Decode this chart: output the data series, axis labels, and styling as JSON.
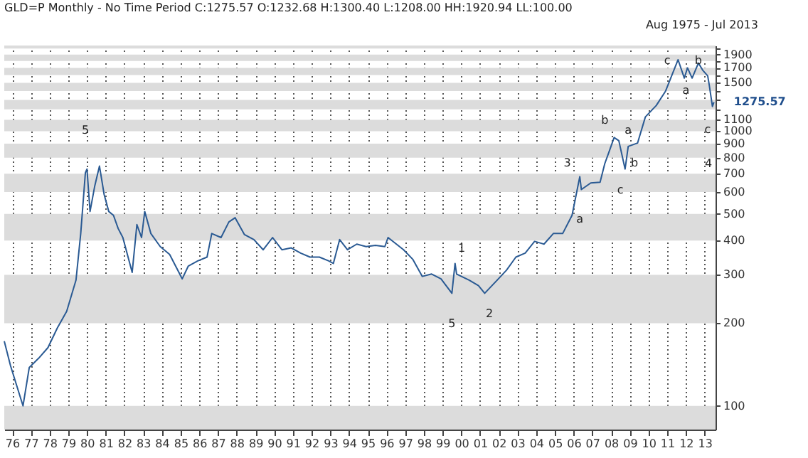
{
  "chart_data": {
    "type": "line",
    "title": "GLD=P Monthly -  No Time Period   C:1275.57 O:1232.68 H:1300.40 L:1208.00 HH:1920.94 LL:100.00",
    "x": [
      "1975-08",
      "1975-12",
      "1976-08",
      "1976-12",
      "1977-06",
      "1977-12",
      "1978-06",
      "1978-12",
      "1979-06",
      "1979-09",
      "1979-12",
      "1980-01",
      "1980-03",
      "1980-06",
      "1980-09",
      "1980-12",
      "1981-03",
      "1981-06",
      "1981-09",
      "1981-12",
      "1982-06",
      "1982-09",
      "1982-12",
      "1983-02",
      "1983-06",
      "1983-12",
      "1984-06",
      "1985-02",
      "1985-06",
      "1985-12",
      "1986-06",
      "1986-09",
      "1987-03",
      "1987-08",
      "1987-12",
      "1988-06",
      "1988-12",
      "1989-06",
      "1989-12",
      "1990-06",
      "1990-12",
      "1991-06",
      "1991-12",
      "1992-06",
      "1992-12",
      "1993-03",
      "1993-07",
      "1993-12",
      "1994-06",
      "1994-12",
      "1995-06",
      "1995-12",
      "1996-02",
      "1996-12",
      "1997-06",
      "1997-12",
      "1998-06",
      "1998-12",
      "1999-07",
      "1999-09",
      "1999-10",
      "2000-06",
      "2000-12",
      "2001-04",
      "2001-12",
      "2002-06",
      "2002-12",
      "2003-06",
      "2003-12",
      "2004-06",
      "2004-12",
      "2005-06",
      "2005-12",
      "2006-05",
      "2006-06",
      "2006-12",
      "2007-06",
      "2007-09",
      "2007-12",
      "2008-03",
      "2008-06",
      "2008-10",
      "2008-12",
      "2009-06",
      "2009-11",
      "2010-06",
      "2010-12",
      "2011-08",
      "2011-12",
      "2012-02",
      "2012-05",
      "2012-09",
      "2012-12",
      "2013-03",
      "2013-04",
      "2013-06",
      "2013-07"
    ],
    "series": [
      {
        "color": "#2a5a93",
        "line_style": "solid",
        "values": [
          172,
          140,
          100,
          138,
          149,
          163,
          192,
          221,
          287,
          424,
          706,
          728,
          510,
          632,
          746,
          588,
          510,
          494,
          442,
          410,
          306,
          457,
          410,
          510,
          424,
          380,
          356,
          290,
          323,
          337,
          348,
          424,
          410,
          467,
          484,
          420,
          403,
          370,
          410,
          370,
          376,
          360,
          348,
          348,
          337,
          330,
          403,
          370,
          388,
          380,
          384,
          380,
          410,
          370,
          341,
          296,
          302,
          290,
          257,
          330,
          302,
          287,
          274,
          257,
          287,
          312,
          348,
          360,
          397,
          388,
          424,
          424,
          494,
          683,
          613,
          648,
          652,
          762,
          849,
          948,
          923,
          728,
          880,
          905,
          1127,
          1240,
          1400,
          1820,
          1560,
          1700,
          1560,
          1770,
          1660,
          1590,
          1470,
          1230,
          1275.57
        ]
      }
    ],
    "xlim": [
      "1975-08",
      "2013-08"
    ],
    "xticks": [
      {
        "value": "1976",
        "label": "76"
      },
      {
        "value": "1977",
        "label": "77"
      },
      {
        "value": "1978",
        "label": "78"
      },
      {
        "value": "1979",
        "label": "79"
      },
      {
        "value": "1980",
        "label": "80"
      },
      {
        "value": "1981",
        "label": "81"
      },
      {
        "value": "1982",
        "label": "82"
      },
      {
        "value": "1983",
        "label": "83"
      },
      {
        "value": "1984",
        "label": "84"
      },
      {
        "value": "1985",
        "label": "85"
      },
      {
        "value": "1986",
        "label": "86"
      },
      {
        "value": "1987",
        "label": "87"
      },
      {
        "value": "1988",
        "label": "88"
      },
      {
        "value": "1989",
        "label": "89"
      },
      {
        "value": "1990",
        "label": "90"
      },
      {
        "value": "1991",
        "label": "91"
      },
      {
        "value": "1992",
        "label": "92"
      },
      {
        "value": "1993",
        "label": "93"
      },
      {
        "value": "1994",
        "label": "94"
      },
      {
        "value": "1995",
        "label": "95"
      },
      {
        "value": "1996",
        "label": "96"
      },
      {
        "value": "1997",
        "label": "97"
      },
      {
        "value": "1998",
        "label": "98"
      },
      {
        "value": "1999",
        "label": "99"
      },
      {
        "value": "2000",
        "label": "00"
      },
      {
        "value": "2001",
        "label": "01"
      },
      {
        "value": "2002",
        "label": "02"
      },
      {
        "value": "2003",
        "label": "03"
      },
      {
        "value": "2004",
        "label": "04"
      },
      {
        "value": "2005",
        "label": "05"
      },
      {
        "value": "2006",
        "label": "06"
      },
      {
        "value": "2007",
        "label": "07"
      },
      {
        "value": "2008",
        "label": "08"
      },
      {
        "value": "2009",
        "label": "09"
      },
      {
        "value": "2010",
        "label": "10"
      },
      {
        "value": "2011",
        "label": "11"
      },
      {
        "value": "2012",
        "label": "12"
      },
      {
        "value": "2013",
        "label": "13"
      }
    ],
    "ylim": [
      82,
      2050
    ],
    "log": true,
    "yticks": [
      100,
      200,
      300,
      400,
      500,
      600,
      700,
      800,
      900,
      1000,
      1100,
      {
        "value": 1200,
        "label": null
      },
      {
        "value": 1300,
        "label": null
      },
      {
        "value": 1400,
        "label": null
      },
      1500,
      {
        "value": 1600,
        "label": null
      },
      1700,
      {
        "value": 1800,
        "label": null
      },
      1900,
      {
        "value": 2000,
        "label": null
      }
    ],
    "grid": "x",
    "marker": "none",
    "bands": [
      {
        "axis": "y",
        "from": 82,
        "to": 100,
        "color": "#dcdcdc"
      },
      {
        "axis": "y",
        "from": 200,
        "to": 300,
        "color": "#dcdcdc"
      },
      {
        "axis": "y",
        "from": 400,
        "to": 500,
        "color": "#dcdcdc"
      },
      {
        "axis": "y",
        "from": 600,
        "to": 700,
        "color": "#dcdcdc"
      },
      {
        "axis": "y",
        "from": 800,
        "to": 900,
        "color": "#dcdcdc"
      },
      {
        "axis": "y",
        "from": 1000,
        "to": 1100,
        "color": "#dcdcdc"
      },
      {
        "axis": "y",
        "from": 1200,
        "to": 1300,
        "color": "#dcdcdc"
      },
      {
        "axis": "y",
        "from": 1400,
        "to": 1500,
        "color": "#dcdcdc"
      },
      {
        "axis": "y",
        "from": 1600,
        "to": 1700,
        "color": "#dcdcdc"
      },
      {
        "axis": "y",
        "from": 1800,
        "to": 1900,
        "color": "#dcdcdc"
      },
      {
        "axis": "y",
        "from": 2000,
        "to": 2050,
        "color": "#dcdcdc"
      }
    ],
    "annotations": [
      "Aug 1975  -  Jul 2013",
      {
        "text": "1275.57",
        "x": "2013-07",
        "y": 1275.57
      },
      {
        "text": "5",
        "x": "1979-12",
        "y": 1000
      },
      {
        "text": "5",
        "x": "1999-07",
        "y": 198
      },
      "1",
      "2",
      {
        "text": "3",
        "x": "2005-09",
        "y": 762
      },
      {
        "text": "a",
        "x": "2006-05",
        "y": 477
      },
      {
        "text": "b",
        "x": "2007-09",
        "y": 1090
      },
      {
        "text": "c",
        "x": "2008-07",
        "y": 606
      },
      {
        "text": "a",
        "x": "2008-12",
        "y": 1000
      },
      {
        "text": "b",
        "x": "2009-04",
        "y": 762
      },
      {
        "text": "c",
        "x": "2011-01",
        "y": 1800
      },
      {
        "text": "a",
        "x": "2012-01",
        "y": 1400
      },
      {
        "text": "b",
        "x": "2012-09",
        "y": 1800
      },
      "4",
      {
        "text": "c",
        "x": "2013-03",
        "y": 1010
      }
    ]
  }
}
